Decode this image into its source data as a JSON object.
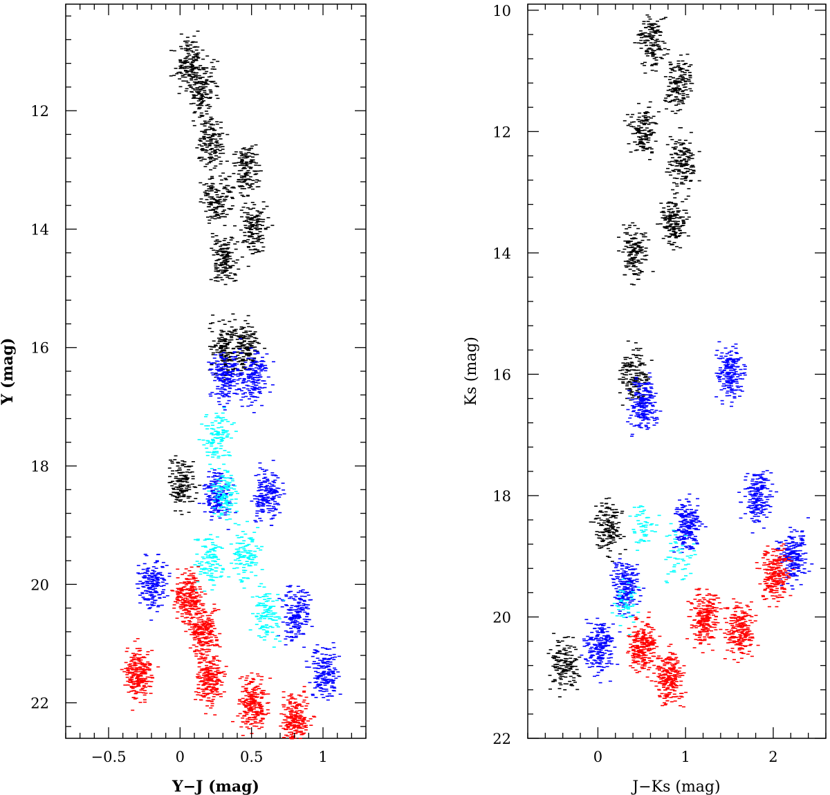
{
  "chart_data": [
    {
      "type": "scatter",
      "xlabel": "Y−J (mag)",
      "ylabel": "Y (mag)",
      "xlim": [
        -0.8,
        1.3
      ],
      "ylim": [
        22.6,
        10.2
      ],
      "y_inverted": true,
      "x_ticks": [
        -0.5,
        0,
        0.5,
        1
      ],
      "x_tick_labels": [
        "−0.5",
        "0",
        "0.5",
        "1"
      ],
      "y_ticks": [
        12,
        14,
        16,
        18,
        20,
        22
      ],
      "y_tick_labels": [
        "12",
        "14",
        "16",
        "18",
        "20",
        "22"
      ],
      "colors": {
        "black": "#000000",
        "blue": "#0000ff",
        "cyan": "#00ffff",
        "red": "#ff0000"
      },
      "series": [
        {
          "color": "black",
          "density": "upper sequences",
          "points": [
            [
              0.05,
              11.2
            ],
            [
              0.15,
              11.6
            ],
            [
              0.2,
              12.5
            ],
            [
              0.25,
              13.5
            ],
            [
              0.3,
              14.5
            ],
            [
              0.3,
              16.0
            ],
            [
              0.45,
              13.0
            ],
            [
              0.5,
              14.0
            ],
            [
              0.45,
              16.0
            ],
            [
              0.0,
              18.3
            ]
          ]
        },
        {
          "color": "blue",
          "density": "middle envelope",
          "points": [
            [
              0.3,
              16.5
            ],
            [
              0.5,
              16.5
            ],
            [
              0.25,
              18.5
            ],
            [
              0.6,
              18.5
            ],
            [
              -0.2,
              20.0
            ],
            [
              0.8,
              20.5
            ],
            [
              1.0,
              21.5
            ]
          ]
        },
        {
          "color": "cyan",
          "density": "middle core",
          "points": [
            [
              0.25,
              17.5
            ],
            [
              0.3,
              18.5
            ],
            [
              0.45,
              19.5
            ],
            [
              0.2,
              19.6
            ],
            [
              0.6,
              20.5
            ]
          ]
        },
        {
          "color": "red",
          "density": "faint clump",
          "points": [
            [
              0.05,
              20.2
            ],
            [
              0.15,
              20.8
            ],
            [
              -0.3,
              21.5
            ],
            [
              0.2,
              21.6
            ],
            [
              0.5,
              22.0
            ],
            [
              0.8,
              22.3
            ]
          ]
        }
      ]
    },
    {
      "type": "scatter",
      "xlabel": "J−Ks (mag)",
      "ylabel": "Ks (mag)",
      "xlim": [
        -0.8,
        2.6
      ],
      "ylim": [
        22.0,
        9.9
      ],
      "y_inverted": true,
      "x_ticks": [
        0,
        1,
        2
      ],
      "x_tick_labels": [
        "0",
        "1",
        "2"
      ],
      "y_ticks": [
        10,
        12,
        14,
        16,
        18,
        20,
        22
      ],
      "y_tick_labels": [
        "10",
        "12",
        "14",
        "16",
        "18",
        "20",
        "22"
      ],
      "colors": {
        "black": "#000000",
        "blue": "#0000ff",
        "cyan": "#00ffff",
        "red": "#ff0000"
      },
      "series": [
        {
          "color": "black",
          "density": "upper sequences",
          "points": [
            [
              0.6,
              10.5
            ],
            [
              0.5,
              12.0
            ],
            [
              0.4,
              14.0
            ],
            [
              0.4,
              16.0
            ],
            [
              0.9,
              11.2
            ],
            [
              0.95,
              12.5
            ],
            [
              0.85,
              13.5
            ],
            [
              0.1,
              18.5
            ],
            [
              -0.4,
              20.8
            ]
          ]
        },
        {
          "color": "blue",
          "density": "faint envelope",
          "points": [
            [
              0.5,
              16.5
            ],
            [
              1.5,
              16.0
            ],
            [
              1.8,
              18.0
            ],
            [
              1.0,
              18.5
            ],
            [
              0.3,
              19.5
            ],
            [
              2.2,
              19.0
            ],
            [
              0.0,
              20.5
            ]
          ]
        },
        {
          "color": "cyan",
          "density": "sparse",
          "points": [
            [
              0.5,
              18.5
            ],
            [
              0.3,
              19.8
            ],
            [
              0.9,
              19.0
            ]
          ]
        },
        {
          "color": "red",
          "density": "faint clump",
          "points": [
            [
              0.5,
              20.5
            ],
            [
              1.2,
              20.0
            ],
            [
              2.0,
              19.3
            ],
            [
              0.8,
              21.0
            ],
            [
              1.6,
              20.2
            ]
          ]
        }
      ]
    }
  ]
}
